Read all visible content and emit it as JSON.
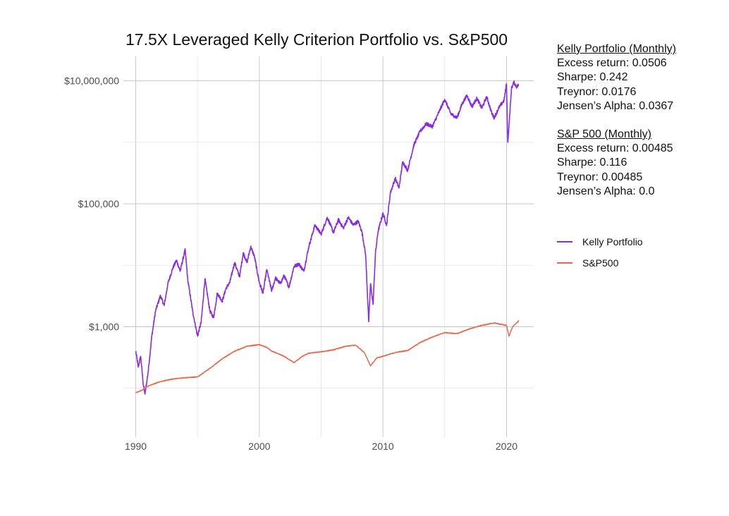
{
  "chart_data": {
    "type": "line",
    "title": "17.5X Leveraged Kelly Criterion Portfolio vs. S&P500",
    "xlabel": "",
    "ylabel": "",
    "x_scale": "time",
    "y_scale": "log10",
    "xlim": [
      1989.0,
      2022.2
    ],
    "ylim": [
      16,
      25000000
    ],
    "x_ticks": [
      1990,
      2000,
      2010,
      2020
    ],
    "x_tick_labels": [
      "1990",
      "2000",
      "2010",
      "2020"
    ],
    "y_ticks": [
      1000,
      100000,
      10000000
    ],
    "y_tick_labels": [
      "$1,000",
      "$100,000",
      "$10,000,000"
    ],
    "grid": true,
    "legend_position": "right",
    "series": [
      {
        "name": "Kelly Portfolio",
        "color": "#8A2BE2",
        "x": [
          1990.0,
          1990.2,
          1990.4,
          1990.6,
          1990.75,
          1991.0,
          1991.3,
          1991.6,
          1992.0,
          1992.3,
          1992.6,
          1993.0,
          1993.3,
          1993.6,
          1994.0,
          1994.2,
          1994.6,
          1995.0,
          1995.3,
          1995.6,
          1996.0,
          1996.3,
          1996.6,
          1997.0,
          1997.3,
          1997.6,
          1998.0,
          1998.4,
          1998.7,
          1999.0,
          1999.3,
          1999.6,
          2000.0,
          2000.3,
          2000.6,
          2001.0,
          2001.3,
          2001.7,
          2002.0,
          2002.4,
          2002.8,
          2003.2,
          2003.6,
          2004.0,
          2004.5,
          2005.0,
          2005.5,
          2006.0,
          2006.4,
          2006.8,
          2007.2,
          2007.6,
          2008.0,
          2008.3,
          2008.6,
          2008.85,
          2009.0,
          2009.2,
          2009.4,
          2009.6,
          2010.0,
          2010.3,
          2010.6,
          2011.0,
          2011.3,
          2011.6,
          2012.0,
          2012.5,
          2013.0,
          2013.5,
          2014.0,
          2014.5,
          2015.0,
          2015.5,
          2016.0,
          2016.4,
          2016.8,
          2017.2,
          2017.6,
          2018.0,
          2018.4,
          2018.8,
          2019.0,
          2019.4,
          2019.8,
          2020.0,
          2020.1,
          2020.2,
          2020.4,
          2020.6,
          2020.8,
          2021.0
        ],
        "y": [
          400,
          220,
          330,
          120,
          80,
          180,
          700,
          1800,
          3200,
          2200,
          5000,
          9000,
          12000,
          8000,
          18000,
          6000,
          1800,
          700,
          1200,
          6000,
          1800,
          1400,
          3500,
          2600,
          4200,
          5200,
          11000,
          6500,
          16000,
          11000,
          20000,
          14000,
          5200,
          3500,
          8500,
          3800,
          6200,
          5000,
          6800,
          4400,
          9500,
          10500,
          8000,
          20000,
          45000,
          32000,
          60000,
          34000,
          55000,
          40000,
          60000,
          45000,
          52000,
          35000,
          15000,
          1200,
          5000,
          2300,
          16000,
          35000,
          70000,
          45000,
          150000,
          260000,
          180000,
          480000,
          350000,
          900000,
          1500000,
          2000000,
          1800000,
          3000000,
          5000000,
          2900000,
          2500000,
          4200000,
          5800000,
          3800000,
          5200000,
          3600000,
          5500000,
          3000000,
          2500000,
          3700000,
          4800000,
          9000000,
          1000000,
          1800000,
          7500000,
          9500000,
          8000000,
          8600000
        ]
      },
      {
        "name": "S&P500",
        "color": "#E8664A",
        "x": [
          1990.0,
          1990.5,
          1991.0,
          1992.0,
          1993.0,
          1994.0,
          1995.0,
          1996.0,
          1997.0,
          1998.0,
          1999.0,
          2000.0,
          2000.6,
          2001.0,
          2002.0,
          2002.8,
          2003.5,
          2004.0,
          2005.0,
          2006.0,
          2007.0,
          2007.8,
          2008.5,
          2009.0,
          2009.5,
          2010.0,
          2011.0,
          2012.0,
          2013.0,
          2014.0,
          2015.0,
          2016.0,
          2017.0,
          2018.0,
          2019.0,
          2020.0,
          2020.2,
          2020.5,
          2021.0
        ],
        "y": [
          85,
          92,
          108,
          128,
          141,
          148,
          152,
          210,
          300,
          400,
          480,
          510,
          460,
          400,
          330,
          260,
          330,
          370,
          390,
          420,
          480,
          500,
          380,
          230,
          310,
          330,
          380,
          410,
          550,
          680,
          800,
          770,
          920,
          1050,
          1150,
          1050,
          700,
          1000,
          1250
        ]
      }
    ]
  },
  "stats": {
    "kelly": {
      "heading": "Kelly Portfolio (Monthly)",
      "excess_return": "Excess return: 0.0506",
      "sharpe": "Sharpe: 0.242",
      "treynor": "Treynor: 0.0176",
      "jensen": "Jensen’s Alpha: 0.0367"
    },
    "sp500": {
      "heading": "S&P 500 (Monthly)",
      "excess_return": "Excess return: 0.00485",
      "sharpe": "Sharpe: 0.116",
      "treynor": "Treynor: 0.00485",
      "jensen": "Jensen’s Alpha: 0.0"
    }
  },
  "legend": {
    "items": [
      {
        "label": "Kelly Portfolio",
        "color": "#8A2BE2"
      },
      {
        "label": "S&P500",
        "color": "#E8664A"
      }
    ]
  }
}
